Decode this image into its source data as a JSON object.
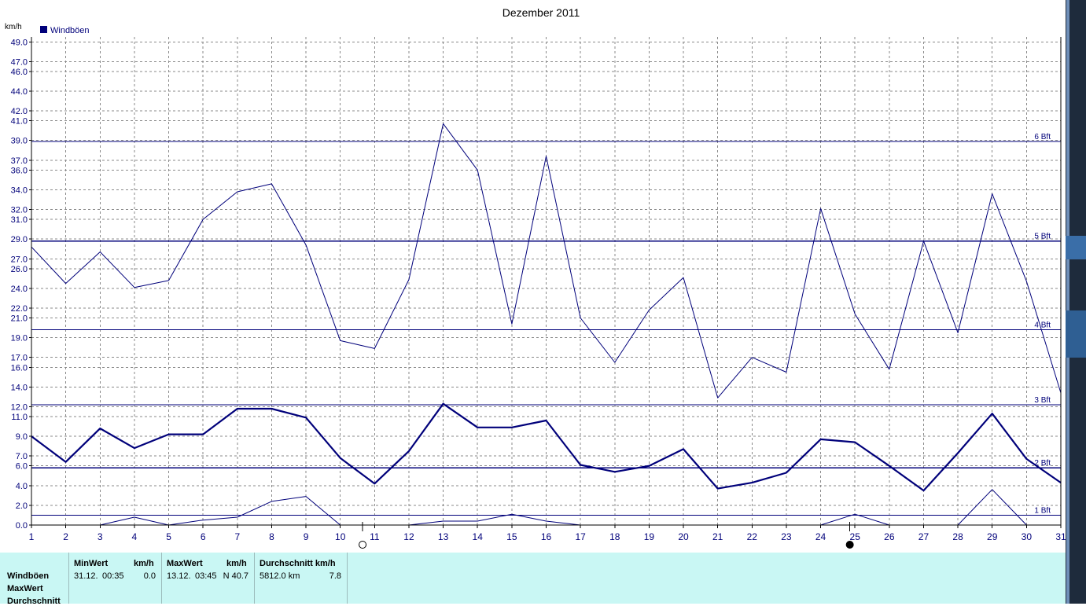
{
  "chart_data": {
    "type": "line",
    "title": "Dezember 2011",
    "ylabel": "km/h",
    "legend": {
      "placement": "top-left",
      "entry": "Windböen"
    },
    "ylim": [
      0,
      49.5
    ],
    "xlim": [
      1,
      31
    ],
    "x_ticks": [
      1,
      2,
      3,
      4,
      5,
      6,
      7,
      8,
      9,
      10,
      11,
      12,
      13,
      14,
      15,
      16,
      17,
      18,
      19,
      20,
      21,
      22,
      23,
      24,
      25,
      26,
      27,
      28,
      29,
      30,
      31
    ],
    "y_ticks": [
      0.0,
      2.0,
      4.0,
      6.0,
      7.0,
      9.0,
      11.0,
      12.0,
      14.0,
      16.0,
      17.0,
      19.0,
      21.0,
      22.0,
      24.0,
      26.0,
      27.0,
      29.0,
      31.0,
      32.0,
      34.0,
      36.0,
      37.0,
      39.0,
      41.0,
      42.0,
      44.0,
      46.0,
      47.0,
      49.0
    ],
    "grid": true,
    "reference_lines": [
      {
        "label": "1 Bft",
        "value": 1.0
      },
      {
        "label": "2 Bft",
        "value": 5.8
      },
      {
        "label": "3 Bft",
        "value": 12.2
      },
      {
        "label": "4 Bft",
        "value": 19.8
      },
      {
        "label": "5 Bft",
        "value": 28.8
      },
      {
        "label": "6 Bft",
        "value": 38.9
      }
    ],
    "series": [
      {
        "role": "max",
        "values": [
          28.2,
          24.5,
          27.7,
          24.1,
          24.8,
          31.0,
          33.8,
          34.6,
          28.4,
          18.7,
          17.9,
          24.9,
          40.7,
          36.0,
          20.4,
          37.4,
          21.0,
          16.5,
          21.8,
          25.1,
          12.9,
          17.0,
          15.5,
          32.1,
          21.4,
          15.8,
          28.8,
          19.5,
          33.6,
          24.7,
          13.4
        ]
      },
      {
        "role": "avg",
        "values": [
          9.0,
          6.4,
          9.8,
          7.8,
          9.2,
          9.2,
          11.8,
          11.8,
          10.9,
          6.8,
          4.2,
          7.5,
          12.3,
          9.9,
          9.9,
          10.6,
          6.1,
          5.4,
          6.0,
          7.7,
          3.7,
          4.3,
          5.3,
          8.7,
          8.4,
          6.0,
          3.5,
          7.3,
          11.3,
          6.7,
          4.3
        ]
      },
      {
        "role": "min",
        "values": [
          null,
          null,
          0.0,
          0.8,
          0.0,
          0.5,
          0.8,
          2.4,
          2.9,
          0.0,
          null,
          0.0,
          0.4,
          0.4,
          1.1,
          0.4,
          0.0,
          null,
          null,
          null,
          null,
          null,
          null,
          0.0,
          1.1,
          0.0,
          null,
          0.0,
          3.6,
          0.0,
          null
        ]
      }
    ],
    "moon_phases": [
      {
        "x": 10.65,
        "phase": "full"
      },
      {
        "x": 24.85,
        "phase": "new"
      }
    ]
  },
  "summary": {
    "row_labels": [
      "Windböen",
      "MaxWert",
      "Durchschnitt"
    ],
    "min": {
      "header": "MinWert",
      "unit": "km/h",
      "date": "31.12.",
      "time": "00:35",
      "value": "0.0"
    },
    "max": {
      "header": "MaxWert",
      "unit": "km/h",
      "date": "13.12.",
      "time": "03:45",
      "dir_value": "N 40.7"
    },
    "avg": {
      "header": "Durchschnitt km/h",
      "distance": "5812.0 km",
      "value": "7.8"
    }
  },
  "colors": {
    "line": "#00007a",
    "grid": "#8a8a8a",
    "panel": "#c9f7f4",
    "text": "#00007a"
  }
}
